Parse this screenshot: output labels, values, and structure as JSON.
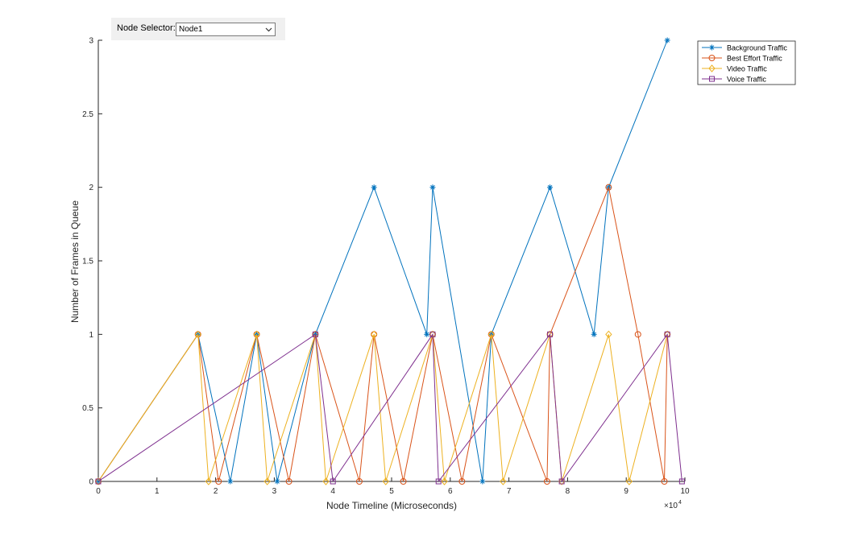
{
  "selector": {
    "label": "Node Selector:",
    "value": "Node1",
    "icon": "chevron-down-icon"
  },
  "chart_data": {
    "type": "line",
    "xlabel": "Node Timeline (Microseconds)",
    "ylabel": "Number of Frames in Queue",
    "xlim": [
      0,
      100000
    ],
    "ylim": [
      0,
      3
    ],
    "xticks": [
      0,
      1,
      2,
      3,
      4,
      5,
      6,
      7,
      8,
      9,
      10
    ],
    "yticks": [
      "0",
      "0.5",
      "1",
      "1.5",
      "2",
      "2.5",
      "3"
    ],
    "x_exponent_label": "×10",
    "x_exponent_power": "4",
    "grid": false,
    "legend_location": "top-right",
    "series": [
      {
        "name": "Background Traffic",
        "color": "#0072bd",
        "marker": "asterisk",
        "x": [
          0,
          17000,
          22500,
          27000,
          30500,
          37000,
          47000,
          56000,
          57000,
          65500,
          67000,
          77000,
          84500,
          87000,
          97000
        ],
        "y": [
          0,
          1,
          0,
          1,
          0,
          1,
          2,
          1,
          2,
          0,
          1,
          2,
          1,
          2,
          3
        ]
      },
      {
        "name": "Best Effort Traffic",
        "color": "#d95319",
        "marker": "circle",
        "x": [
          0,
          17000,
          20500,
          27000,
          32500,
          37000,
          44500,
          47000,
          52000,
          57000,
          62000,
          67000,
          76500,
          77000,
          87000,
          92000,
          96500,
          97000
        ],
        "y": [
          0,
          1,
          0,
          1,
          0,
          1,
          0,
          1,
          0,
          1,
          0,
          1,
          0,
          1,
          2,
          1,
          0,
          1
        ]
      },
      {
        "name": "Video Traffic",
        "color": "#edb120",
        "marker": "diamond",
        "x": [
          0,
          17000,
          18800,
          27000,
          28800,
          37000,
          38800,
          47000,
          49000,
          57000,
          59000,
          67000,
          69000,
          77000,
          79000,
          87000,
          90500,
          97000
        ],
        "y": [
          0,
          1,
          0,
          1,
          0,
          1,
          0,
          1,
          0,
          1,
          0,
          1,
          0,
          1,
          0,
          1,
          0,
          1
        ]
      },
      {
        "name": "Voice Traffic",
        "color": "#7e2f8e",
        "marker": "square",
        "x": [
          0,
          37000,
          40000,
          57000,
          58000,
          77000,
          79000,
          97000,
          99500
        ],
        "y": [
          0,
          1,
          0,
          1,
          0,
          1,
          0,
          1,
          0
        ]
      }
    ]
  }
}
